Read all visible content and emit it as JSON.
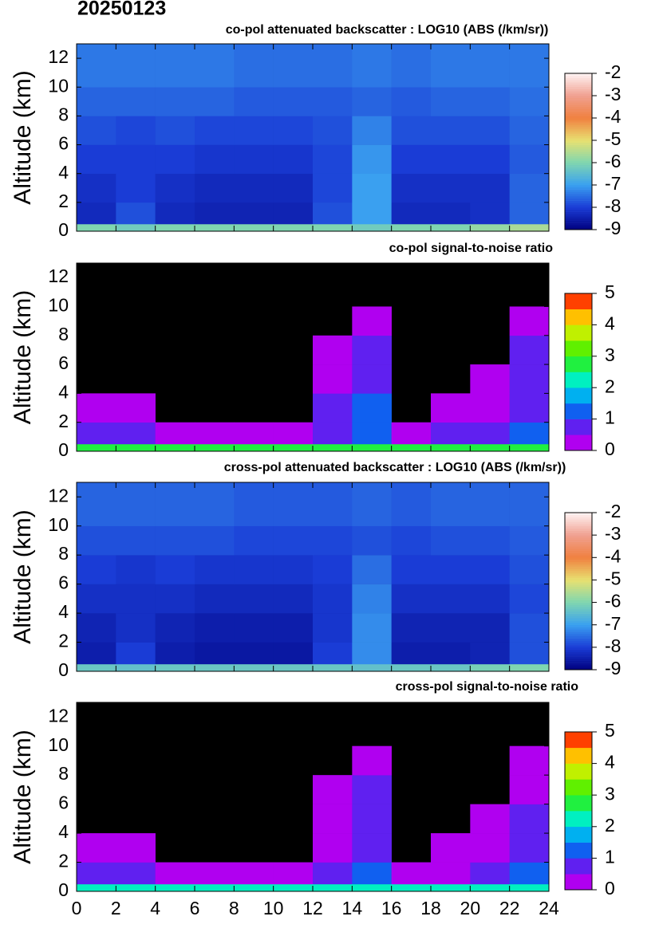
{
  "title": "20250123",
  "chart_data": [
    {
      "type": "heatmap",
      "title": "co-pol attenuated backscatter : LOG10 (ABS (/km/sr))",
      "y_label": "Altitude (km)",
      "xlim": [
        0,
        24
      ],
      "xticks": [
        0,
        2,
        4,
        6,
        8,
        10,
        12,
        14,
        16,
        18,
        20,
        22,
        24
      ],
      "ylim": [
        0,
        13
      ],
      "yticks": [
        0,
        2,
        4,
        6,
        8,
        10,
        12
      ],
      "x_bins": [
        0,
        2,
        4,
        6,
        8,
        10,
        12,
        14,
        16,
        18,
        20,
        22,
        24
      ],
      "y_bins": [
        0,
        0.5,
        2,
        4,
        6,
        8,
        10,
        13
      ],
      "z": [
        [
          -6,
          -6.2,
          -6,
          -6,
          -6,
          -6,
          -6,
          -6.2,
          -6,
          -6,
          -5.8,
          -5.6
        ],
        [
          -8.3,
          -7.8,
          -8.3,
          -8.4,
          -8.4,
          -8.4,
          -7.8,
          -7,
          -8.3,
          -8.3,
          -8.2,
          -7.6
        ],
        [
          -8.2,
          -8,
          -8.2,
          -8.3,
          -8.3,
          -8.3,
          -7.9,
          -7,
          -8.2,
          -8.2,
          -8.2,
          -7.6
        ],
        [
          -8,
          -8,
          -8,
          -8.1,
          -8.1,
          -8.1,
          -7.9,
          -7.1,
          -8,
          -8,
          -8,
          -7.7
        ],
        [
          -7.8,
          -7.9,
          -7.8,
          -7.9,
          -7.9,
          -7.9,
          -7.8,
          -7.3,
          -7.8,
          -7.8,
          -7.8,
          -7.6
        ],
        [
          -7.6,
          -7.6,
          -7.6,
          -7.6,
          -7.7,
          -7.7,
          -7.7,
          -7.6,
          -7.7,
          -7.6,
          -7.6,
          -7.5
        ],
        [
          -7.4,
          -7.4,
          -7.4,
          -7.4,
          -7.5,
          -7.5,
          -7.5,
          -7.4,
          -7.5,
          -7.4,
          -7.4,
          -7.4
        ]
      ],
      "zlim": [
        -9,
        -2
      ],
      "zticks": [
        -9,
        -8,
        -7,
        -6,
        -5,
        -4,
        -3,
        -2
      ],
      "colorbar_style": "continuous",
      "background": "#000000",
      "colormap": [
        "#00007f",
        "#1a3cd6",
        "#3aa0f0",
        "#7fd6b0",
        "#e8e070",
        "#f08040",
        "#f0a090",
        "#fff4f4"
      ]
    },
    {
      "type": "heatmap",
      "title": "co-pol signal-to-noise ratio",
      "y_label": "Altitude (km)",
      "xlim": [
        0,
        24
      ],
      "xticks": [
        0,
        2,
        4,
        6,
        8,
        10,
        12,
        14,
        16,
        18,
        20,
        22,
        24
      ],
      "ylim": [
        0,
        13
      ],
      "yticks": [
        0,
        2,
        4,
        6,
        8,
        10,
        12
      ],
      "x_bins": [
        0,
        2,
        4,
        6,
        8,
        10,
        12,
        14,
        16,
        18,
        20,
        22,
        24
      ],
      "y_bins": [
        0,
        0.5,
        2,
        4,
        6,
        8,
        10,
        13
      ],
      "z": [
        [
          2.5,
          2.5,
          2.5,
          2.5,
          2.5,
          2.5,
          2.5,
          2.5,
          2.5,
          2.5,
          2.5,
          2.5
        ],
        [
          0.6,
          0.8,
          0.3,
          0.1,
          0.1,
          0.1,
          0.6,
          1.2,
          0.3,
          0.5,
          0.7,
          1.2
        ],
        [
          0.2,
          0.4,
          null,
          null,
          null,
          null,
          0.5,
          1,
          null,
          0.3,
          0.4,
          0.8
        ],
        [
          null,
          null,
          null,
          null,
          null,
          null,
          0.3,
          0.8,
          null,
          null,
          0.2,
          0.7
        ],
        [
          null,
          null,
          null,
          null,
          null,
          null,
          0.2,
          0.6,
          null,
          null,
          null,
          0.5
        ],
        [
          null,
          null,
          null,
          null,
          null,
          null,
          null,
          0.3,
          null,
          null,
          null,
          0.4
        ],
        [
          null,
          null,
          null,
          null,
          null,
          null,
          null,
          null,
          null,
          null,
          null,
          null
        ]
      ],
      "zlim": [
        0,
        5
      ],
      "zticks": [
        0,
        1,
        2,
        3,
        4,
        5
      ],
      "colorbar_style": "discrete",
      "background": "#000000",
      "colormap": [
        "#b000f0",
        "#6020f0",
        "#1060f0",
        "#00b0f0",
        "#00f0c0",
        "#20f040",
        "#60f000",
        "#c0f000",
        "#ffc000",
        "#ff4000"
      ]
    },
    {
      "type": "heatmap",
      "title": "cross-pol attenuated backscatter : LOG10 (ABS (/km/sr))",
      "y_label": "Altitude (km)",
      "xlim": [
        0,
        24
      ],
      "xticks": [
        0,
        2,
        4,
        6,
        8,
        10,
        12,
        14,
        16,
        18,
        20,
        22,
        24
      ],
      "ylim": [
        0,
        13
      ],
      "yticks": [
        0,
        2,
        4,
        6,
        8,
        10,
        12
      ],
      "x_bins": [
        0,
        2,
        4,
        6,
        8,
        10,
        12,
        14,
        16,
        18,
        20,
        22,
        24
      ],
      "y_bins": [
        0,
        0.5,
        2,
        4,
        6,
        8,
        10,
        13
      ],
      "z": [
        [
          -6.3,
          -6.4,
          -6.3,
          -6.3,
          -6.3,
          -6.3,
          -6.3,
          -6.4,
          -6.3,
          -6.3,
          -6.1,
          -6
        ],
        [
          -8.5,
          -8,
          -8.5,
          -8.6,
          -8.6,
          -8.6,
          -8,
          -7.2,
          -8.5,
          -8.5,
          -8.4,
          -7.8
        ],
        [
          -8.4,
          -8.2,
          -8.4,
          -8.5,
          -8.5,
          -8.5,
          -8.1,
          -7.2,
          -8.4,
          -8.4,
          -8.4,
          -7.8
        ],
        [
          -8.2,
          -8.2,
          -8.2,
          -8.3,
          -8.3,
          -8.3,
          -8.1,
          -7.3,
          -8.2,
          -8.2,
          -8.2,
          -7.9
        ],
        [
          -8,
          -8.1,
          -8,
          -8.1,
          -8.1,
          -8.1,
          -8,
          -7.5,
          -8,
          -8,
          -8,
          -7.8
        ],
        [
          -7.8,
          -7.8,
          -7.8,
          -7.8,
          -7.9,
          -7.9,
          -7.9,
          -7.8,
          -7.9,
          -7.8,
          -7.8,
          -7.7
        ],
        [
          -7.6,
          -7.6,
          -7.6,
          -7.6,
          -7.7,
          -7.7,
          -7.7,
          -7.6,
          -7.7,
          -7.6,
          -7.6,
          -7.6
        ]
      ],
      "zlim": [
        -9,
        -2
      ],
      "zticks": [
        -9,
        -8,
        -7,
        -6,
        -5,
        -4,
        -3,
        -2
      ],
      "colorbar_style": "continuous",
      "background": "#000000",
      "colormap": [
        "#00007f",
        "#1a3cd6",
        "#3aa0f0",
        "#7fd6b0",
        "#e8e070",
        "#f08040",
        "#f0a090",
        "#fff4f4"
      ]
    },
    {
      "type": "heatmap",
      "title": "cross-pol signal-to-noise ratio",
      "y_label": "Altitude (km)",
      "xlim": [
        0,
        24
      ],
      "xticks": [
        0,
        2,
        4,
        6,
        8,
        10,
        12,
        14,
        16,
        18,
        20,
        22,
        24
      ],
      "ylim": [
        0,
        13
      ],
      "yticks": [
        0,
        2,
        4,
        6,
        8,
        10,
        12
      ],
      "x_bins": [
        0,
        2,
        4,
        6,
        8,
        10,
        12,
        14,
        16,
        18,
        20,
        22,
        24
      ],
      "y_bins": [
        0,
        0.5,
        2,
        4,
        6,
        8,
        10,
        13
      ],
      "z": [
        [
          2.2,
          2.2,
          2.2,
          2.2,
          2.2,
          2.2,
          2.2,
          2.2,
          2.2,
          2.2,
          2.2,
          2.2
        ],
        [
          0.5,
          0.7,
          0.3,
          0.1,
          0.1,
          0.1,
          0.5,
          1.1,
          0.2,
          0.4,
          0.6,
          1.1
        ],
        [
          0.2,
          0.3,
          null,
          null,
          null,
          null,
          0.4,
          0.9,
          null,
          0.3,
          0.4,
          0.7
        ],
        [
          null,
          null,
          null,
          null,
          null,
          null,
          0.3,
          0.7,
          null,
          null,
          0.2,
          0.6
        ],
        [
          null,
          null,
          null,
          null,
          null,
          null,
          0.2,
          0.5,
          null,
          null,
          null,
          0.4
        ],
        [
          null,
          null,
          null,
          null,
          null,
          null,
          null,
          0.3,
          null,
          null,
          null,
          0.3
        ],
        [
          null,
          null,
          null,
          null,
          null,
          null,
          null,
          null,
          null,
          null,
          null,
          null
        ]
      ],
      "zlim": [
        0,
        5
      ],
      "zticks": [
        0,
        1,
        2,
        3,
        4,
        5
      ],
      "colorbar_style": "discrete",
      "background": "#000000",
      "colormap": [
        "#b000f0",
        "#6020f0",
        "#1060f0",
        "#00b0f0",
        "#00f0c0",
        "#20f040",
        "#60f000",
        "#c0f000",
        "#ffc000",
        "#ff4000"
      ]
    }
  ]
}
